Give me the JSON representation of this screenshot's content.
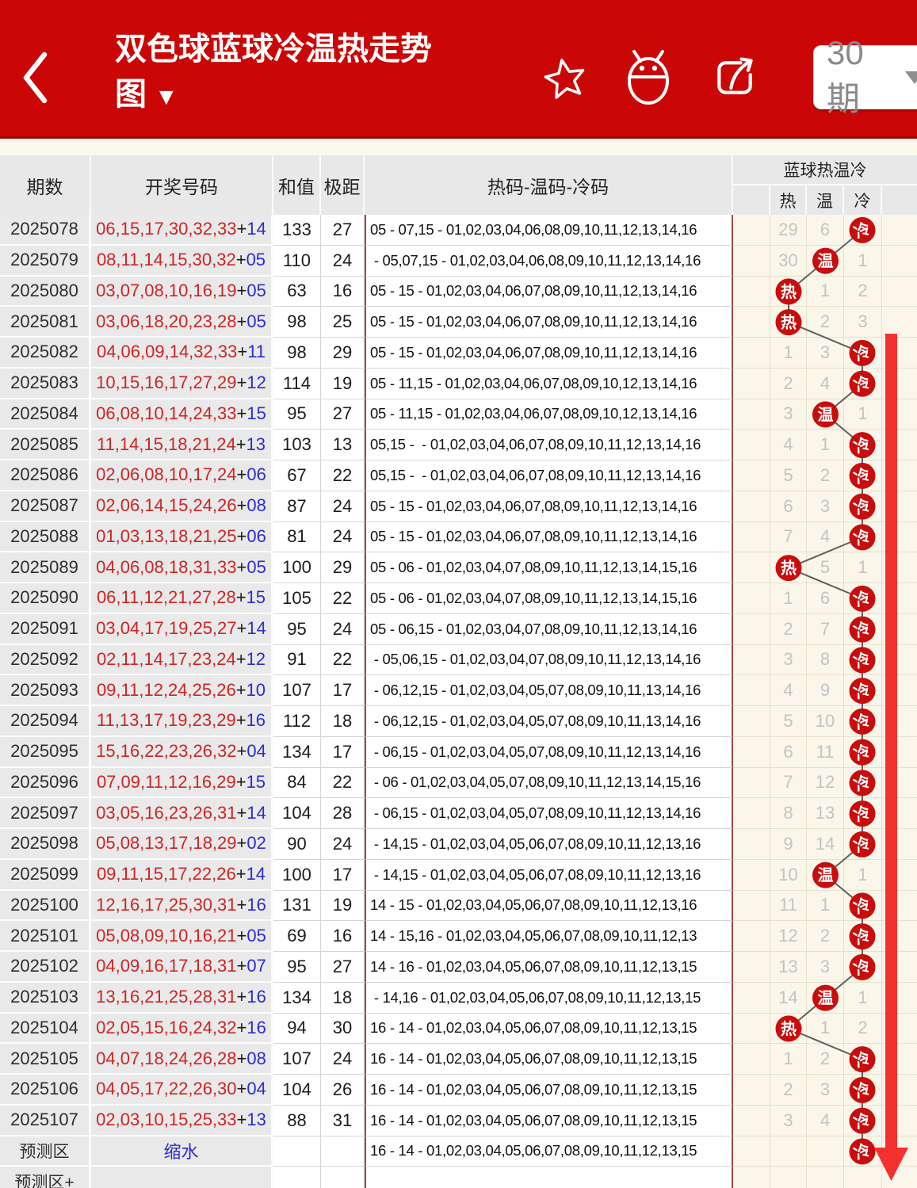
{
  "header": {
    "title_line1": "双色球蓝球冷温热走势",
    "title_line2": "图",
    "title_caret": "▼",
    "back_icon": "chevron-left",
    "icons": [
      "star-icon",
      "android-icon",
      "share-icon"
    ],
    "dropdown_value": "30期"
  },
  "colors": {
    "appbar_red": "#CB0606",
    "arrow_red": "#F5312F",
    "ball_red": "#C90D0D",
    "red_number": "#CE2424",
    "blue_number": "#2B2BD5",
    "link_blue": "#2B2BD5",
    "accent_line": "#9B4A4A",
    "page_cream": "#FAF6EA"
  },
  "table": {
    "columns": {
      "period": "期数",
      "numbers": "开奖号码",
      "sum": "和值",
      "range": "极距",
      "codes": "热码-温码-冷码",
      "blue_group": "蓝球热温冷",
      "hot": "热",
      "warm": "温",
      "cold": "冷"
    },
    "labels": {
      "plus": "+"
    },
    "rows": [
      {
        "period": "2025078",
        "reds": "06,15,17,30,32,33",
        "blue": "14",
        "sum": "133",
        "range": "27",
        "codes": "05 - 07,15 - 01,02,03,04,06,08,09,10,11,12,13,14,16",
        "hot": "29",
        "warm": "6",
        "cold": "冷"
      },
      {
        "period": "2025079",
        "reds": "08,11,14,15,30,32",
        "blue": "05",
        "sum": "110",
        "range": "24",
        "codes": " - 05,07,15 - 01,02,03,04,06,08,09,10,11,12,13,14,16",
        "hot": "30",
        "warm": "温",
        "cold": "1"
      },
      {
        "period": "2025080",
        "reds": "03,07,08,10,16,19",
        "blue": "05",
        "sum": "63",
        "range": "16",
        "codes": "05 - 15 - 01,02,03,04,06,07,08,09,10,11,12,13,14,16",
        "hot": "热",
        "warm": "1",
        "cold": "2"
      },
      {
        "period": "2025081",
        "reds": "03,06,18,20,23,28",
        "blue": "05",
        "sum": "98",
        "range": "25",
        "codes": "05 - 15 - 01,02,03,04,06,07,08,09,10,11,12,13,14,16",
        "hot": "热",
        "warm": "2",
        "cold": "3"
      },
      {
        "period": "2025082",
        "reds": "04,06,09,14,32,33",
        "blue": "11",
        "sum": "98",
        "range": "29",
        "codes": "05 - 15 - 01,02,03,04,06,07,08,09,10,11,12,13,14,16",
        "hot": "1",
        "warm": "3",
        "cold": "冷"
      },
      {
        "period": "2025083",
        "reds": "10,15,16,17,27,29",
        "blue": "12",
        "sum": "114",
        "range": "19",
        "codes": "05 - 11,15 - 01,02,03,04,06,07,08,09,10,12,13,14,16",
        "hot": "2",
        "warm": "4",
        "cold": "冷"
      },
      {
        "period": "2025084",
        "reds": "06,08,10,14,24,33",
        "blue": "15",
        "sum": "95",
        "range": "27",
        "codes": "05 - 11,15 - 01,02,03,04,06,07,08,09,10,12,13,14,16",
        "hot": "3",
        "warm": "温",
        "cold": "1"
      },
      {
        "period": "2025085",
        "reds": "11,14,15,18,21,24",
        "blue": "13",
        "sum": "103",
        "range": "13",
        "codes": "05,15 -  - 01,02,03,04,06,07,08,09,10,11,12,13,14,16",
        "hot": "4",
        "warm": "1",
        "cold": "冷"
      },
      {
        "period": "2025086",
        "reds": "02,06,08,10,17,24",
        "blue": "06",
        "sum": "67",
        "range": "22",
        "codes": "05,15 -  - 01,02,03,04,06,07,08,09,10,11,12,13,14,16",
        "hot": "5",
        "warm": "2",
        "cold": "冷"
      },
      {
        "period": "2025087",
        "reds": "02,06,14,15,24,26",
        "blue": "08",
        "sum": "87",
        "range": "24",
        "codes": "05 - 15 - 01,02,03,04,06,07,08,09,10,11,12,13,14,16",
        "hot": "6",
        "warm": "3",
        "cold": "冷"
      },
      {
        "period": "2025088",
        "reds": "01,03,13,18,21,25",
        "blue": "06",
        "sum": "81",
        "range": "24",
        "codes": "05 - 15 - 01,02,03,04,06,07,08,09,10,11,12,13,14,16",
        "hot": "7",
        "warm": "4",
        "cold": "冷"
      },
      {
        "period": "2025089",
        "reds": "04,06,08,18,31,33",
        "blue": "05",
        "sum": "100",
        "range": "29",
        "codes": "05 - 06 - 01,02,03,04,07,08,09,10,11,12,13,14,15,16",
        "hot": "热",
        "warm": "5",
        "cold": "1"
      },
      {
        "period": "2025090",
        "reds": "06,11,12,21,27,28",
        "blue": "15",
        "sum": "105",
        "range": "22",
        "codes": "05 - 06 - 01,02,03,04,07,08,09,10,11,12,13,14,15,16",
        "hot": "1",
        "warm": "6",
        "cold": "冷"
      },
      {
        "period": "2025091",
        "reds": "03,04,17,19,25,27",
        "blue": "14",
        "sum": "95",
        "range": "24",
        "codes": "05 - 06,15 - 01,02,03,04,07,08,09,10,11,12,13,14,16",
        "hot": "2",
        "warm": "7",
        "cold": "冷"
      },
      {
        "period": "2025092",
        "reds": "02,11,14,17,23,24",
        "blue": "12",
        "sum": "91",
        "range": "22",
        "codes": " - 05,06,15 - 01,02,03,04,07,08,09,10,11,12,13,14,16",
        "hot": "3",
        "warm": "8",
        "cold": "冷"
      },
      {
        "period": "2025093",
        "reds": "09,11,12,24,25,26",
        "blue": "10",
        "sum": "107",
        "range": "17",
        "codes": " - 06,12,15 - 01,02,03,04,05,07,08,09,10,11,13,14,16",
        "hot": "4",
        "warm": "9",
        "cold": "冷"
      },
      {
        "period": "2025094",
        "reds": "11,13,17,19,23,29",
        "blue": "16",
        "sum": "112",
        "range": "18",
        "codes": " - 06,12,15 - 01,02,03,04,05,07,08,09,10,11,13,14,16",
        "hot": "5",
        "warm": "10",
        "cold": "冷"
      },
      {
        "period": "2025095",
        "reds": "15,16,22,23,26,32",
        "blue": "04",
        "sum": "134",
        "range": "17",
        "codes": " - 06,15 - 01,02,03,04,05,07,08,09,10,11,12,13,14,16",
        "hot": "6",
        "warm": "11",
        "cold": "冷"
      },
      {
        "period": "2025096",
        "reds": "07,09,11,12,16,29",
        "blue": "15",
        "sum": "84",
        "range": "22",
        "codes": " - 06 - 01,02,03,04,05,07,08,09,10,11,12,13,14,15,16",
        "hot": "7",
        "warm": "12",
        "cold": "冷"
      },
      {
        "period": "2025097",
        "reds": "03,05,16,23,26,31",
        "blue": "14",
        "sum": "104",
        "range": "28",
        "codes": " - 06,15 - 01,02,03,04,05,07,08,09,10,11,12,13,14,16",
        "hot": "8",
        "warm": "13",
        "cold": "冷"
      },
      {
        "period": "2025098",
        "reds": "05,08,13,17,18,29",
        "blue": "02",
        "sum": "90",
        "range": "24",
        "codes": " - 14,15 - 01,02,03,04,05,06,07,08,09,10,11,12,13,16",
        "hot": "9",
        "warm": "14",
        "cold": "冷"
      },
      {
        "period": "2025099",
        "reds": "09,11,15,17,22,26",
        "blue": "14",
        "sum": "100",
        "range": "17",
        "codes": " - 14,15 - 01,02,03,04,05,06,07,08,09,10,11,12,13,16",
        "hot": "10",
        "warm": "温",
        "cold": "1"
      },
      {
        "period": "2025100",
        "reds": "12,16,17,25,30,31",
        "blue": "16",
        "sum": "131",
        "range": "19",
        "codes": "14 - 15 - 01,02,03,04,05,06,07,08,09,10,11,12,13,16",
        "hot": "11",
        "warm": "1",
        "cold": "冷"
      },
      {
        "period": "2025101",
        "reds": "05,08,09,10,16,21",
        "blue": "05",
        "sum": "69",
        "range": "16",
        "codes": "14 - 15,16 - 01,02,03,04,05,06,07,08,09,10,11,12,13",
        "hot": "12",
        "warm": "2",
        "cold": "冷"
      },
      {
        "period": "2025102",
        "reds": "04,09,16,17,18,31",
        "blue": "07",
        "sum": "95",
        "range": "27",
        "codes": "14 - 16 - 01,02,03,04,05,06,07,08,09,10,11,12,13,15",
        "hot": "13",
        "warm": "3",
        "cold": "冷"
      },
      {
        "period": "2025103",
        "reds": "13,16,21,25,28,31",
        "blue": "16",
        "sum": "134",
        "range": "18",
        "codes": " - 14,16 - 01,02,03,04,05,06,07,08,09,10,11,12,13,15",
        "hot": "14",
        "warm": "温",
        "cold": "1"
      },
      {
        "period": "2025104",
        "reds": "02,05,15,16,24,32",
        "blue": "16",
        "sum": "94",
        "range": "30",
        "codes": "16 - 14 - 01,02,03,04,05,06,07,08,09,10,11,12,13,15",
        "hot": "热",
        "warm": "1",
        "cold": "2"
      },
      {
        "period": "2025105",
        "reds": "04,07,18,24,26,28",
        "blue": "08",
        "sum": "107",
        "range": "24",
        "codes": "16 - 14 - 01,02,03,04,05,06,07,08,09,10,11,12,13,15",
        "hot": "1",
        "warm": "2",
        "cold": "冷"
      },
      {
        "period": "2025106",
        "reds": "04,05,17,22,26,30",
        "blue": "04",
        "sum": "104",
        "range": "26",
        "codes": "16 - 14 - 01,02,03,04,05,06,07,08,09,10,11,12,13,15",
        "hot": "2",
        "warm": "3",
        "cold": "冷"
      },
      {
        "period": "2025107",
        "reds": "02,03,10,15,25,33",
        "blue": "13",
        "sum": "88",
        "range": "31",
        "codes": "16 - 14 - 01,02,03,04,05,06,07,08,09,10,11,12,13,15",
        "hot": "3",
        "warm": "4",
        "cold": "冷"
      },
      {
        "period": "预测区",
        "link": "缩水",
        "sum": "",
        "range": "",
        "codes": "16 - 14 - 01,02,03,04,05,06,07,08,09,10,11,12,13,15",
        "hot": "",
        "warm": "",
        "cold": "冷"
      },
      {
        "period": "预测区+",
        "sum": "",
        "range": "",
        "codes": "",
        "hot": "",
        "warm": "",
        "cold": ""
      }
    ]
  }
}
